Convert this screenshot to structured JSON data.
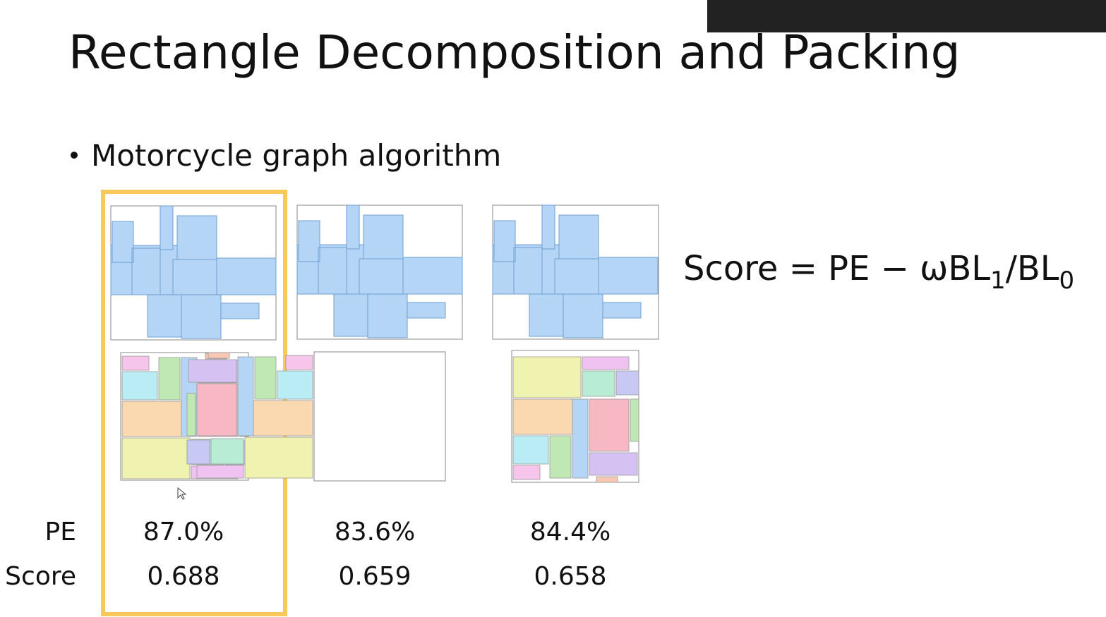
{
  "slide": {
    "title": "Rectangle Decomposition and Packing",
    "bullet": "Motorcycle graph algorithm",
    "formula": {
      "main": "Score = PE − ωBL",
      "sub1": "1",
      "mid": "/BL",
      "sub2": "0"
    },
    "table": {
      "row_labels": [
        "PE",
        "Score"
      ],
      "rows": [
        [
          "87.0%",
          "83.6%",
          "84.4%"
        ],
        [
          "0.688",
          "0.659",
          "0.658"
        ]
      ]
    }
  }
}
